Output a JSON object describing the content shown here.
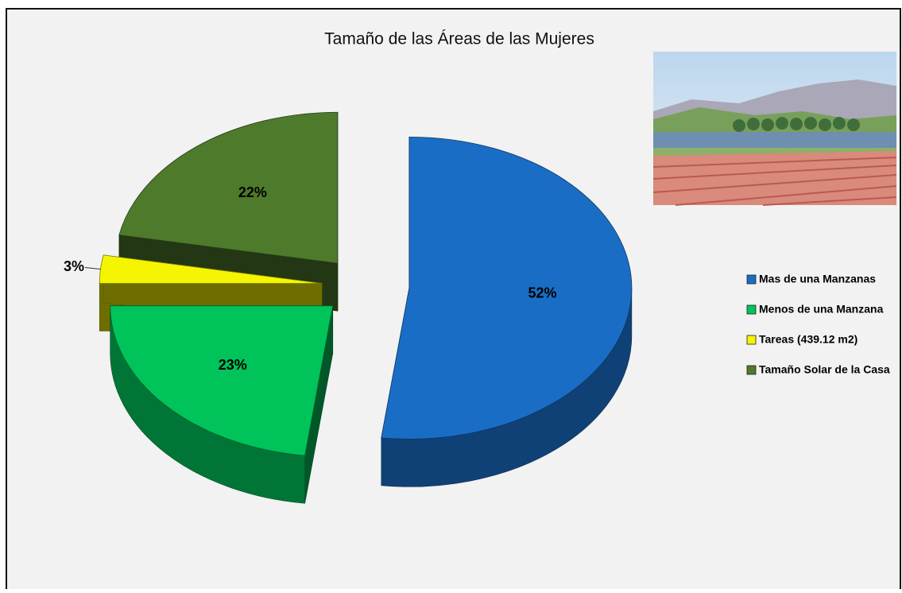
{
  "chart_data": {
    "type": "pie",
    "title": "Tamaño de las Áreas de las Mujeres",
    "categories": [
      "Mas de una Manzanas",
      "Menos de una Manzana",
      "Tareas (439.12 m2)",
      "Tamaño Solar de la Casa"
    ],
    "values": [
      52,
      23,
      3,
      22
    ],
    "value_labels": [
      "52%",
      "23%",
      "3%",
      "22%"
    ],
    "colors": [
      "#1a6dc4",
      "#00c35a",
      "#f5f500",
      "#4e7a2c"
    ],
    "legend": "right"
  }
}
